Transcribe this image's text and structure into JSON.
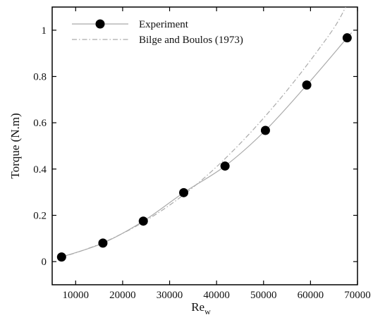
{
  "chart_data": {
    "type": "line",
    "xlabel": "Re",
    "xlabel_sub": "w",
    "ylabel": "Torque (N.m)",
    "xlim": [
      5000,
      70000
    ],
    "ylim": [
      -0.1,
      1.1
    ],
    "xticks": [
      10000,
      20000,
      30000,
      40000,
      50000,
      60000,
      70000
    ],
    "yticks": [
      0,
      0.2,
      0.4,
      0.6,
      0.8,
      1
    ],
    "xtick_labels": [
      "10000",
      "20000",
      "30000",
      "40000",
      "50000",
      "60000",
      "70000"
    ],
    "ytick_labels": [
      "0",
      "0.2",
      "0.4",
      "0.6",
      "0.8",
      "1"
    ],
    "grid": false,
    "legend_position": "top-left",
    "series": [
      {
        "name": "Experiment",
        "style": "solid line with filled circle markers",
        "color": "#aaaaaa",
        "marker_color": "#000000",
        "x": [
          7000,
          15800,
          24400,
          33000,
          41800,
          50400,
          59200,
          67800
        ],
        "y": [
          0.02,
          0.08,
          0.175,
          0.298,
          0.413,
          0.567,
          0.763,
          0.967
        ]
      },
      {
        "name": "Bilge and Boulos (1973)",
        "style": "dash-dot line",
        "color": "#aaaaaa",
        "x": [
          6500,
          10000,
          15000,
          20000,
          25000,
          30000,
          35000,
          40000,
          45000,
          50000,
          55000,
          60000,
          65000,
          67500
        ],
        "y": [
          0.018,
          0.038,
          0.075,
          0.122,
          0.178,
          0.244,
          0.321,
          0.41,
          0.51,
          0.62,
          0.74,
          0.87,
          1.01,
          1.1
        ]
      }
    ]
  }
}
